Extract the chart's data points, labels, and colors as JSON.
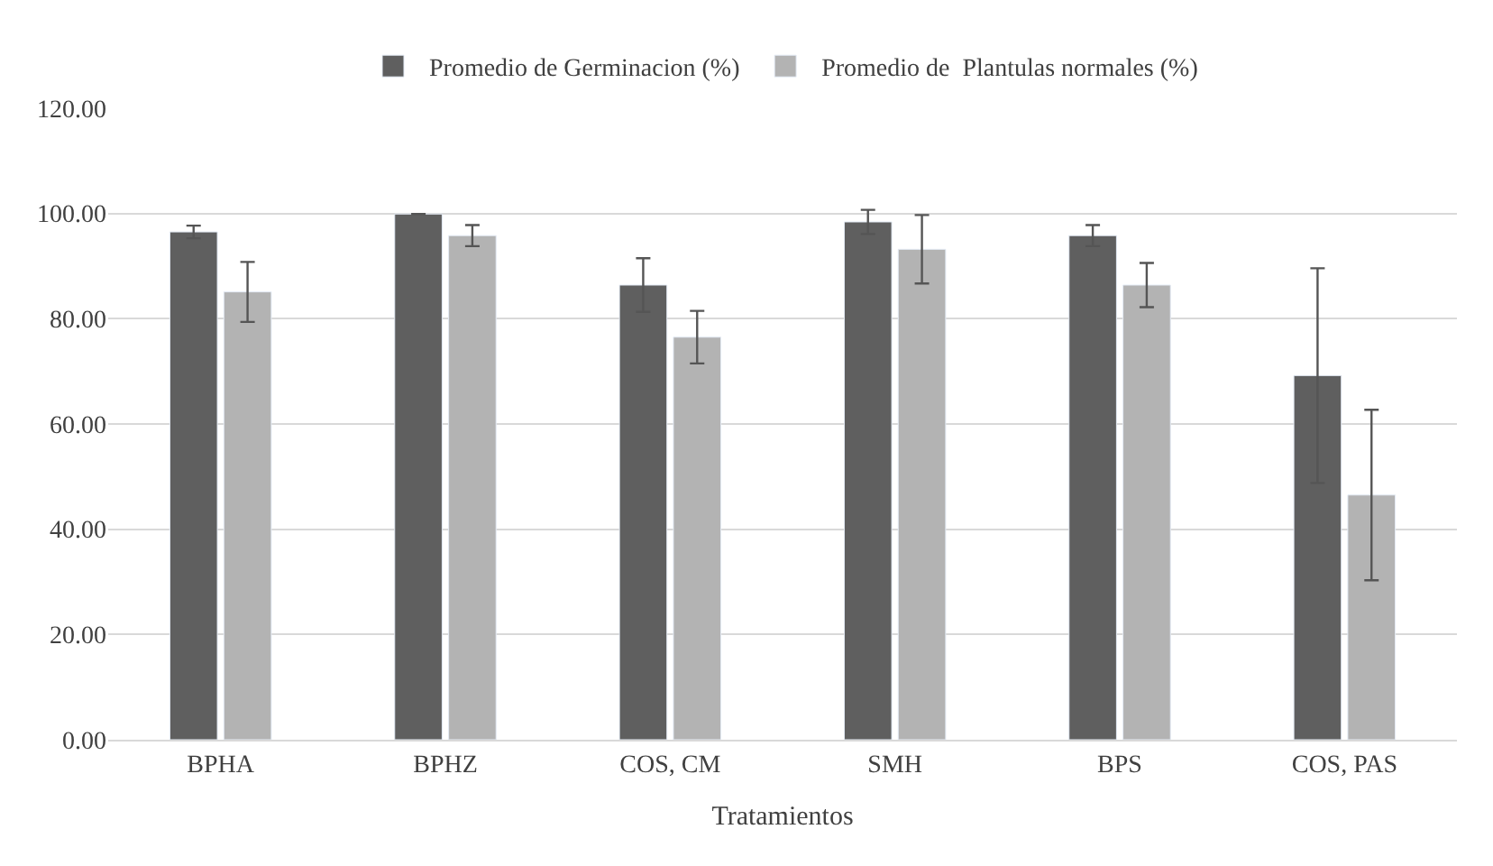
{
  "chart_data": {
    "type": "bar",
    "xlabel": "Tratamientos",
    "categories": [
      "BPHA",
      "BPHZ",
      "COS, CM",
      "SMH",
      "BPS",
      "COS, PAS"
    ],
    "series": [
      {
        "name": "Promedio de Germinacion (%)",
        "color": "#5f5f5f",
        "values": [
          96.5,
          99.9,
          86.4,
          98.4,
          95.8,
          69.2
        ],
        "errors": [
          1.2,
          0,
          5.1,
          2.3,
          2,
          20.4
        ]
      },
      {
        "name": "Promedio de  Plantulas normales (%)",
        "color": "#b3b3b3",
        "values": [
          85.1,
          95.8,
          76.5,
          93.2,
          86.4,
          46.5
        ],
        "errors": [
          5.7,
          2,
          5,
          6.5,
          4.2,
          16.2
        ]
      }
    ],
    "ylim": [
      0,
      120
    ],
    "yticks": [
      {
        "value": 0,
        "label": "0.00"
      },
      {
        "value": 20,
        "label": "20.00"
      },
      {
        "value": 40,
        "label": "40.00"
      },
      {
        "value": 60,
        "label": "60.00"
      },
      {
        "value": 80,
        "label": "80.00"
      },
      {
        "value": 100,
        "label": "100.00"
      },
      {
        "value": 120,
        "label": "120.00"
      }
    ],
    "grid": "y",
    "legend": "top"
  }
}
